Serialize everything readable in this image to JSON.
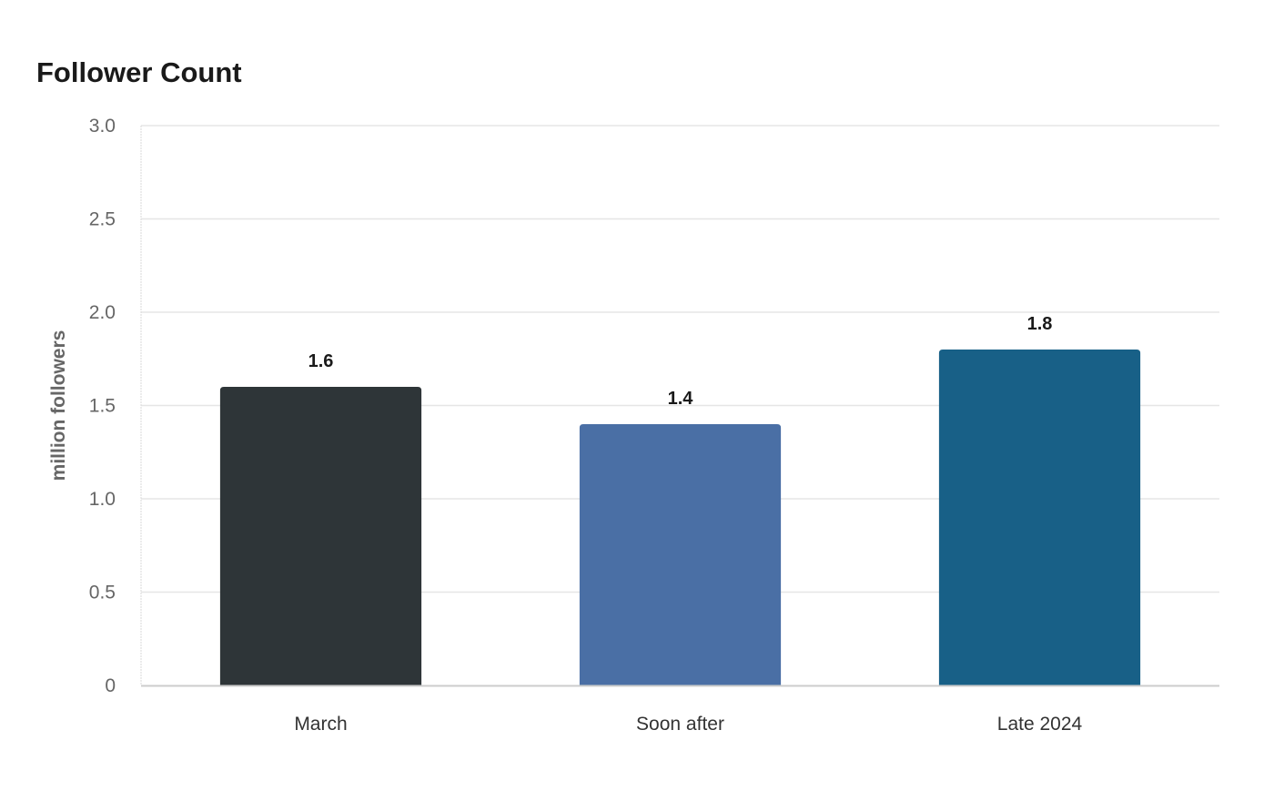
{
  "chart_data": {
    "type": "bar",
    "title": "Follower Count",
    "xlabel": "",
    "ylabel": "million followers",
    "categories": [
      "March",
      "Soon after",
      "Late 2024"
    ],
    "values": [
      1.6,
      1.4,
      1.8
    ],
    "value_labels": [
      "1.6",
      "1.4",
      "1.8"
    ],
    "colors": [
      "#2e3538",
      "#4a6fa5",
      "#186087"
    ],
    "ylim": [
      0,
      3.0
    ],
    "yticks": [
      0,
      0.5,
      1.0,
      1.5,
      2.0,
      2.5,
      3.0
    ],
    "ytick_labels": [
      "0",
      "0.5",
      "1.0",
      "1.5",
      "2.0",
      "2.5",
      "3.0"
    ],
    "grid": true,
    "legend": "none"
  }
}
